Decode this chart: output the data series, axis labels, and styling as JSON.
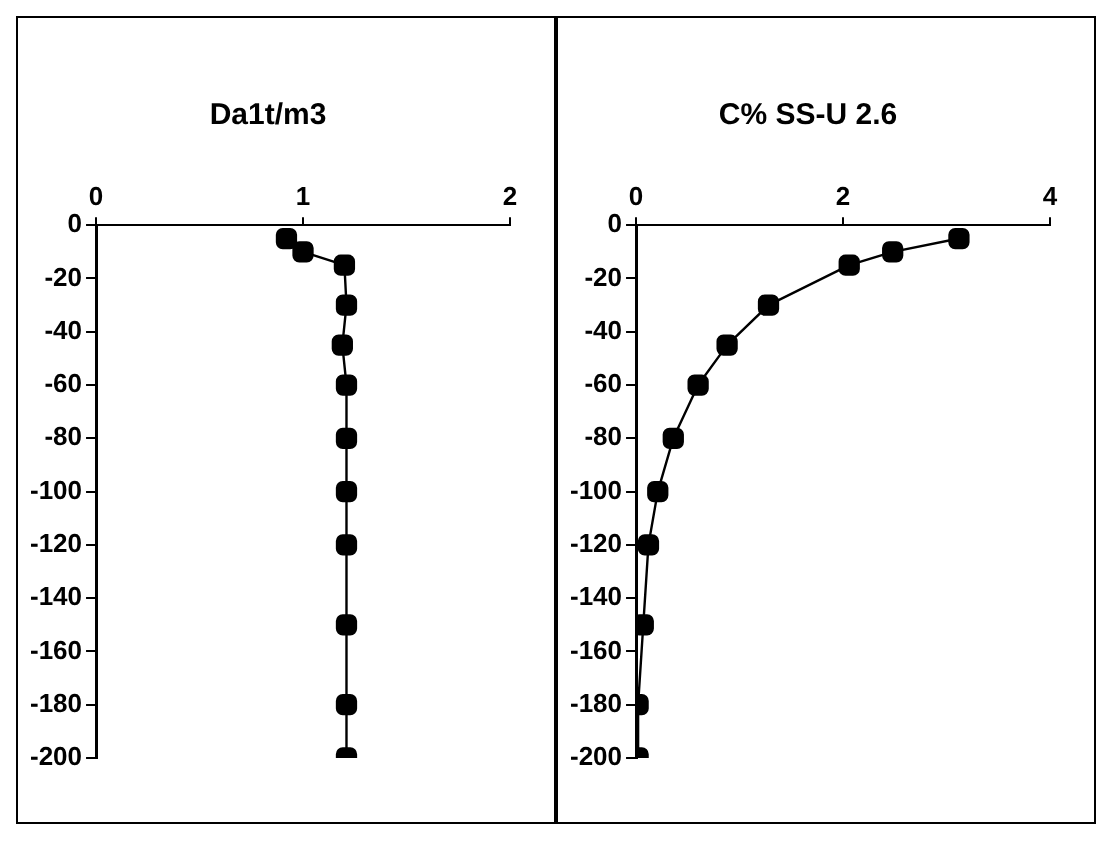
{
  "chart_data": [
    {
      "type": "line",
      "orientation": "horizontal",
      "title": "Da1t/m3",
      "marker": "square",
      "grid": false,
      "legend": false,
      "series": [
        {
          "color": "#000000",
          "values": [
            0.92,
            1.0,
            1.2,
            1.21,
            1.19,
            1.21,
            1.21,
            1.21,
            1.21,
            1.21,
            1.21,
            1.21
          ],
          "x": [
            -5,
            -10,
            -15,
            -30,
            -45,
            -60,
            -80,
            -100,
            -120,
            -150,
            -180,
            -200
          ]
        }
      ],
      "xlim": [
        0,
        2
      ],
      "xticks": [
        0,
        1,
        2
      ],
      "ylim": [
        -200,
        0
      ],
      "yticks": [
        -200,
        -180,
        -160,
        -140,
        -120,
        -100,
        -80,
        -60,
        -40,
        -20,
        0
      ]
    },
    {
      "type": "line",
      "orientation": "horizontal",
      "title": "C% SS-U 2.6",
      "marker": "square",
      "grid": false,
      "legend": false,
      "series": [
        {
          "color": "#000000",
          "values": [
            3.12,
            2.48,
            2.06,
            1.28,
            0.88,
            0.6,
            0.36,
            0.21,
            0.12,
            0.07,
            0.02,
            0.02
          ],
          "x": [
            -5,
            -10,
            -15,
            -30,
            -45,
            -60,
            -80,
            -100,
            -120,
            -150,
            -180,
            -200
          ]
        }
      ],
      "xlim": [
        0,
        4
      ],
      "xticks": [
        0,
        2,
        4
      ],
      "ylim": [
        -200,
        0
      ],
      "yticks": [
        -200,
        -180,
        -160,
        -140,
        -120,
        -100,
        -80,
        -60,
        -40,
        -20,
        0
      ]
    }
  ]
}
